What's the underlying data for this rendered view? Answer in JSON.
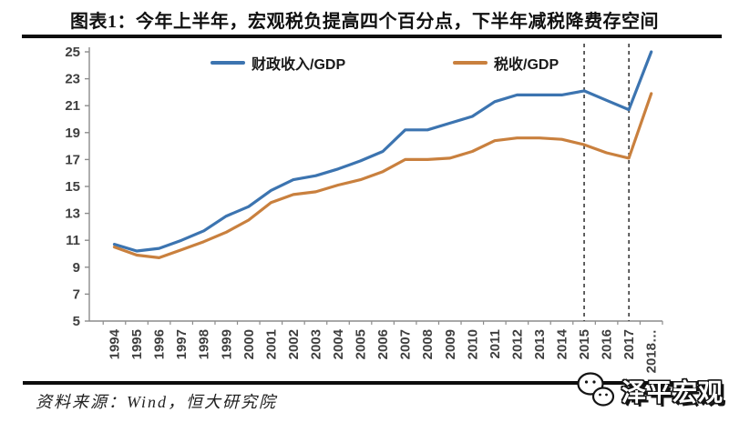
{
  "title": "图表1：今年上半年，宏观税负提高四个百分点，下半年减税降费存空间",
  "source_note": "资料来源：Wind，恒大研究院",
  "logo": {
    "text": "泽平宏观",
    "icon": "wechat-icon"
  },
  "colors": {
    "fiscal_line": "#3c74b0",
    "tax_line": "#c9803e",
    "axis_line": "#8c8c8c",
    "axis_label": "#3f3f3f",
    "dashed_line": "#3a3a3a",
    "rule": "#0d0d0d"
  },
  "legend": {
    "items": [
      {
        "label": "财政收入/GDP",
        "color": "#3c74b0"
      },
      {
        "label": "税收/GDP",
        "color": "#c9803e"
      }
    ],
    "position": "top-inside"
  },
  "chart_data": {
    "type": "line",
    "title": "图表1：今年上半年，宏观税负提高四个百分点，下半年减税降费存空间",
    "xlabel": "",
    "ylabel": "",
    "categories": [
      "1994",
      "1995",
      "1996",
      "1997",
      "1998",
      "1999",
      "2000",
      "2001",
      "2002",
      "2003",
      "2004",
      "2005",
      "2006",
      "2007",
      "2008",
      "2009",
      "2010",
      "2011",
      "2012",
      "2013",
      "2014",
      "2015",
      "2016",
      "2017",
      "2018…"
    ],
    "series": [
      {
        "name": "财政收入/GDP",
        "color": "#3c74b0",
        "values": [
          10.7,
          10.2,
          10.4,
          11.0,
          11.7,
          12.8,
          13.5,
          14.7,
          15.5,
          15.8,
          16.3,
          16.9,
          17.6,
          19.2,
          19.2,
          19.7,
          20.2,
          21.3,
          21.8,
          21.8,
          21.8,
          22.1,
          21.4,
          20.7,
          25.0
        ]
      },
      {
        "name": "税收/GDP",
        "color": "#c9803e",
        "values": [
          10.5,
          9.9,
          9.7,
          10.3,
          10.9,
          11.6,
          12.5,
          13.8,
          14.4,
          14.6,
          15.1,
          15.5,
          16.1,
          17.0,
          17.0,
          17.1,
          17.6,
          18.4,
          18.6,
          18.6,
          18.5,
          18.1,
          17.5,
          17.1,
          21.9
        ]
      }
    ],
    "ylim": [
      5,
      25
    ],
    "yticks": [
      5,
      7,
      9,
      11,
      13,
      15,
      17,
      19,
      21,
      23,
      25
    ],
    "grid": false,
    "legend_position": "top-inside",
    "dashed_vlines": [
      "2015",
      "2017"
    ]
  }
}
